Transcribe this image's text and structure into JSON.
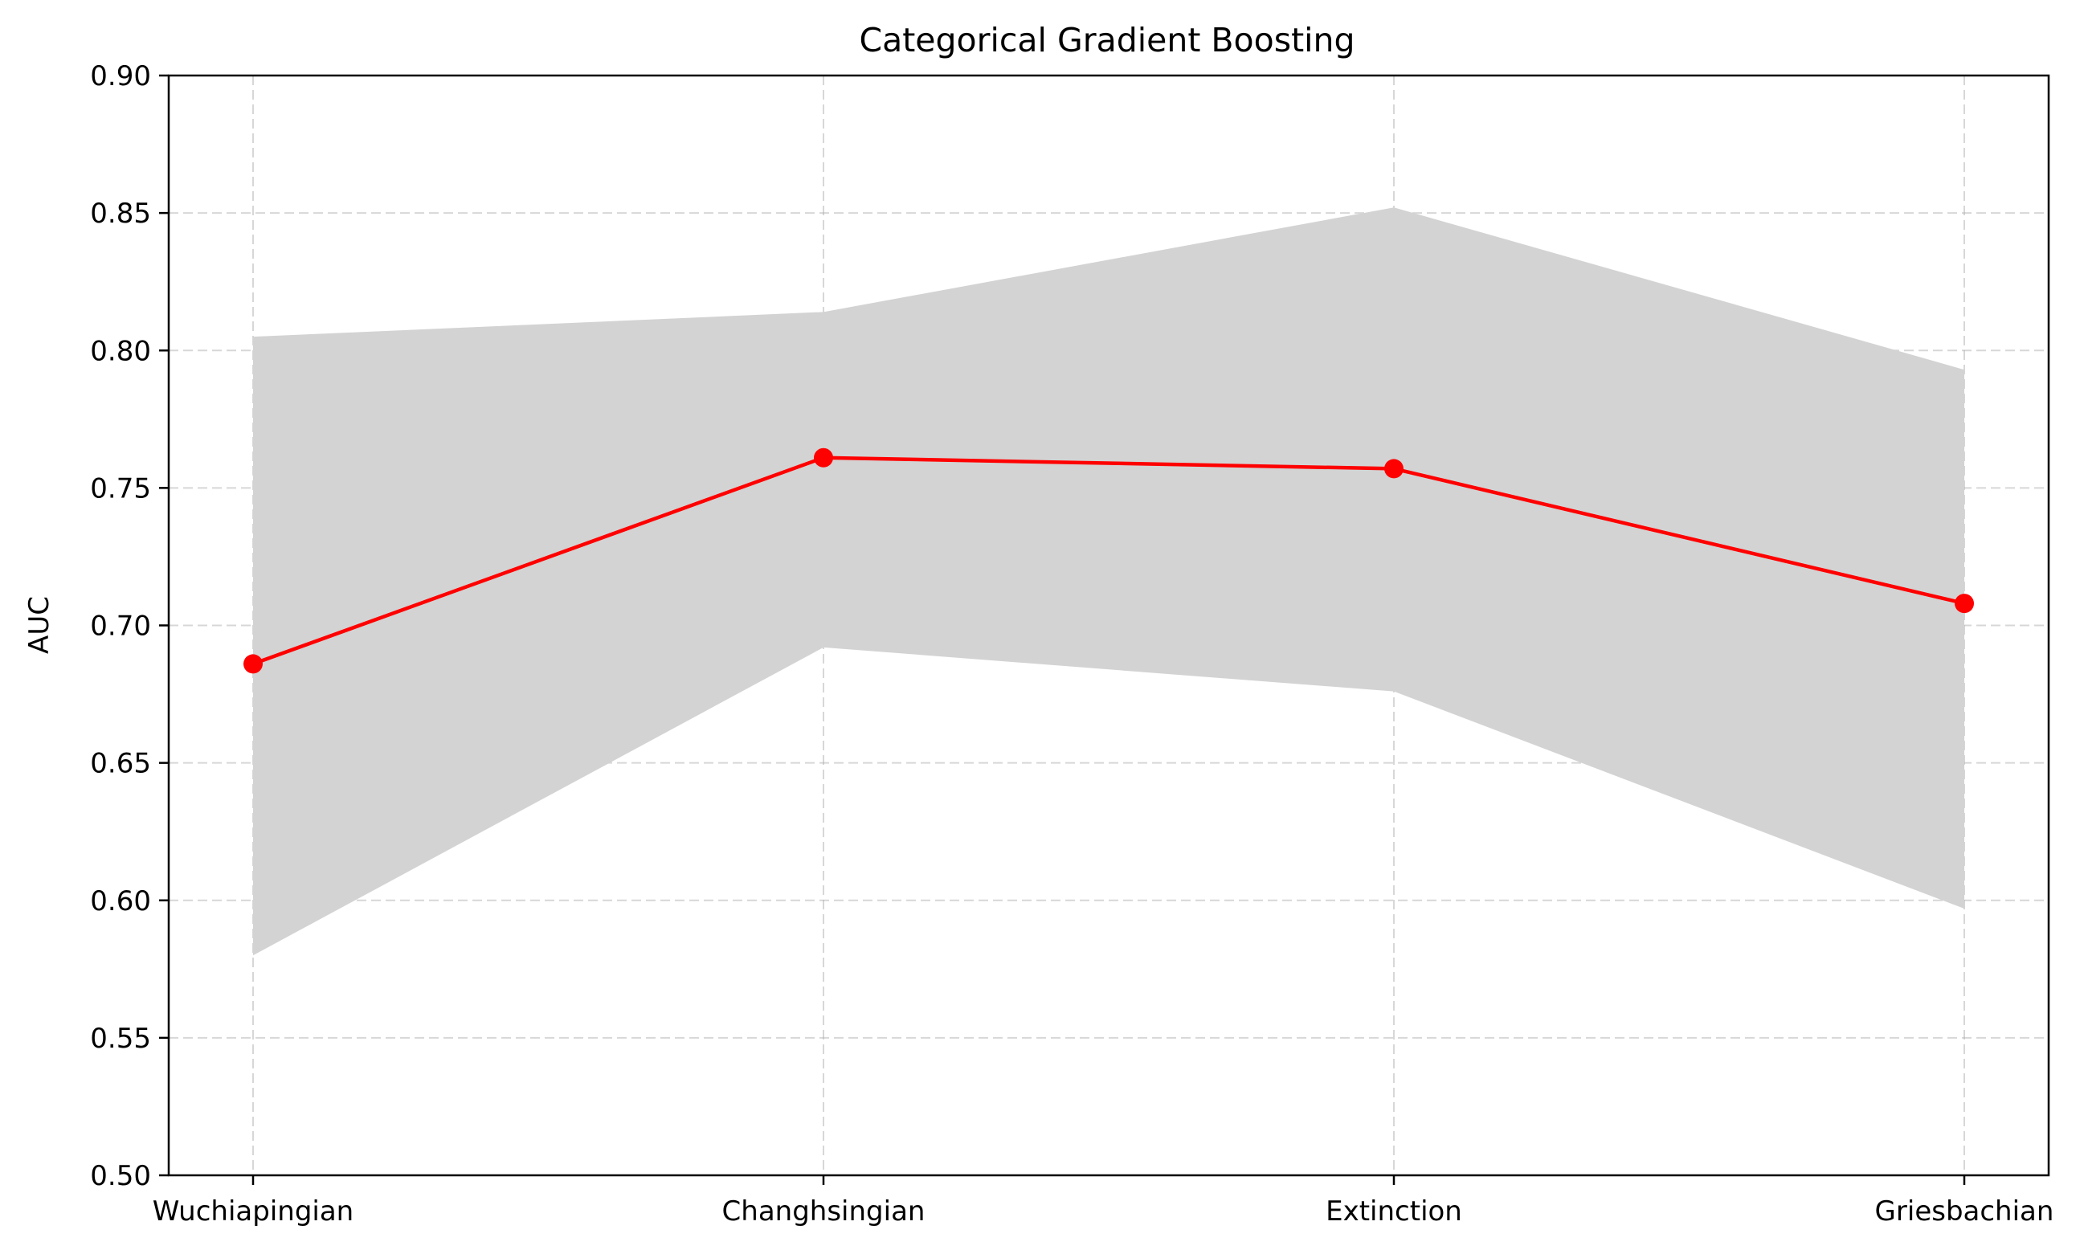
{
  "chart_data": {
    "type": "line",
    "title": "Categorical Gradient Boosting",
    "xlabel": "",
    "ylabel": "AUC",
    "categories": [
      "Wuchiapingian",
      "Changhsingian",
      "Extinction",
      "Griesbachian"
    ],
    "series": [
      {
        "values": [
          0.686,
          0.761,
          0.757,
          0.708
        ],
        "color": "#ff0000",
        "marker": "circle"
      }
    ],
    "band": {
      "lower": [
        0.58,
        0.692,
        0.676,
        0.597
      ],
      "upper": [
        0.805,
        0.814,
        0.852,
        0.793
      ],
      "color": "#d3d3d3"
    },
    "ylim": [
      0.5,
      0.9
    ],
    "yticks": [
      0.5,
      0.55,
      0.6,
      0.65,
      0.7,
      0.75,
      0.8,
      0.85,
      0.9
    ],
    "ytick_labels": [
      "0.50",
      "0.55",
      "0.60",
      "0.65",
      "0.70",
      "0.75",
      "0.80",
      "0.85",
      "0.90"
    ],
    "grid": true,
    "grid_style": "dashed",
    "legend": "none"
  }
}
